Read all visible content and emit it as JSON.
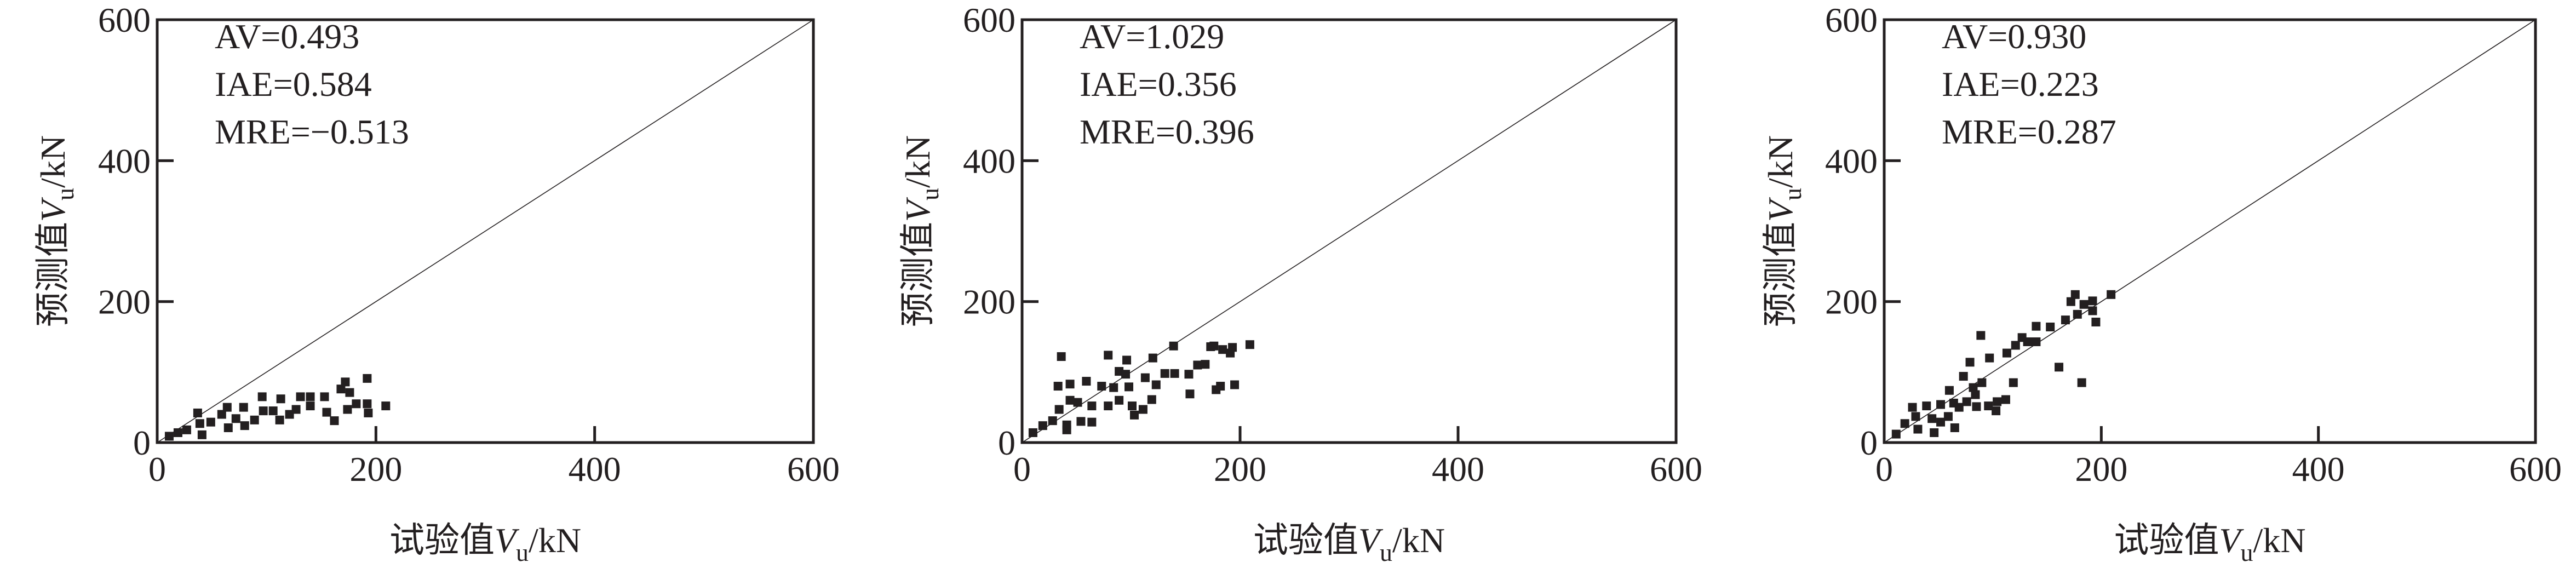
{
  "chart_data": [
    {
      "type": "scatter",
      "xlabel": {
        "prefix": "试验值",
        "var": "V",
        "sub": "u",
        "suffix": "/kN"
      },
      "ylabel": {
        "prefix": "预测值",
        "var": "V",
        "sub": "u",
        "suffix": "/kN"
      },
      "xlim": [
        0,
        600
      ],
      "ylim": [
        0,
        600
      ],
      "xticks": [
        "0",
        "200",
        "400",
        "600"
      ],
      "yticks": [
        "0",
        "200",
        "400",
        "600"
      ],
      "annotations": [
        "AV=0.493",
        "IAE=0.584",
        "MRE=−0.513"
      ],
      "reference_line": "y=x",
      "points": [
        [
          11,
          9
        ],
        [
          19,
          14
        ],
        [
          27,
          18
        ],
        [
          37,
          42
        ],
        [
          39,
          27
        ],
        [
          41,
          11
        ],
        [
          49,
          29
        ],
        [
          59,
          40
        ],
        [
          64,
          50
        ],
        [
          65,
          21
        ],
        [
          72,
          34
        ],
        [
          79,
          50
        ],
        [
          80,
          24
        ],
        [
          89,
          32
        ],
        [
          96,
          65
        ],
        [
          97,
          45
        ],
        [
          106,
          45
        ],
        [
          112,
          32
        ],
        [
          113,
          62
        ],
        [
          121,
          40
        ],
        [
          127,
          47
        ],
        [
          131,
          65
        ],
        [
          140,
          65
        ],
        [
          140,
          52
        ],
        [
          153,
          65
        ],
        [
          155,
          43
        ],
        [
          162,
          31
        ],
        [
          168,
          76
        ],
        [
          172,
          86
        ],
        [
          176,
          71
        ],
        [
          174,
          47
        ],
        [
          182,
          55
        ],
        [
          192,
          91
        ],
        [
          192,
          55
        ],
        [
          193,
          42
        ],
        [
          209,
          52
        ]
      ]
    },
    {
      "type": "scatter",
      "xlabel": {
        "prefix": "试验值",
        "var": "V",
        "sub": "u",
        "suffix": "/kN"
      },
      "ylabel": {
        "prefix": "预测值",
        "var": "V",
        "sub": "u",
        "suffix": "/kN"
      },
      "xlim": [
        0,
        600
      ],
      "ylim": [
        0,
        600
      ],
      "xticks": [
        "0",
        "200",
        "400",
        "600"
      ],
      "yticks": [
        "0",
        "200",
        "400",
        "600"
      ],
      "annotations": [
        "AV=1.029",
        "IAE=0.356",
        "MRE=0.396"
      ],
      "reference_line": "y=x",
      "points": [
        [
          10,
          14
        ],
        [
          19,
          24
        ],
        [
          28,
          31
        ],
        [
          41,
          25
        ],
        [
          41,
          18
        ],
        [
          54,
          30
        ],
        [
          64,
          29
        ],
        [
          36,
          122
        ],
        [
          33,
          80
        ],
        [
          44,
          83
        ],
        [
          59,
          87
        ],
        [
          73,
          80
        ],
        [
          84,
          78
        ],
        [
          98,
          79
        ],
        [
          44,
          60
        ],
        [
          51,
          57
        ],
        [
          34,
          47
        ],
        [
          64,
          52
        ],
        [
          79,
          52
        ],
        [
          89,
          60
        ],
        [
          101,
          52
        ],
        [
          103,
          39
        ],
        [
          111,
          47
        ],
        [
          79,
          124
        ],
        [
          96,
          117
        ],
        [
          89,
          101
        ],
        [
          95,
          97
        ],
        [
          113,
          92
        ],
        [
          119,
          61
        ],
        [
          120,
          120
        ],
        [
          123,
          82
        ],
        [
          131,
          98
        ],
        [
          139,
          137
        ],
        [
          140,
          98
        ],
        [
          153,
          97
        ],
        [
          154,
          69
        ],
        [
          161,
          110
        ],
        [
          168,
          111
        ],
        [
          173,
          136
        ],
        [
          176,
          137
        ],
        [
          178,
          75
        ],
        [
          182,
          80
        ],
        [
          184,
          132
        ],
        [
          191,
          127
        ],
        [
          193,
          135
        ],
        [
          195,
          82
        ],
        [
          209,
          139
        ]
      ]
    },
    {
      "type": "scatter",
      "xlabel": {
        "prefix": "试验值",
        "var": "V",
        "sub": "u",
        "suffix": "/kN"
      },
      "ylabel": {
        "prefix": "预测值",
        "var": "V",
        "sub": "u",
        "suffix": "/kN"
      },
      "xlim": [
        0,
        600
      ],
      "ylim": [
        0,
        600
      ],
      "xticks": [
        "0",
        "200",
        "400",
        "600"
      ],
      "yticks": [
        "0",
        "200",
        "400",
        "600"
      ],
      "annotations": [
        "AV=0.930",
        "IAE=0.223",
        "MRE=0.287"
      ],
      "reference_line": "y=x",
      "points": [
        [
          11,
          12
        ],
        [
          19,
          27
        ],
        [
          26,
          50
        ],
        [
          31,
          19
        ],
        [
          29,
          37
        ],
        [
          39,
          52
        ],
        [
          44,
          34
        ],
        [
          46,
          14
        ],
        [
          52,
          29
        ],
        [
          52,
          54
        ],
        [
          59,
          37
        ],
        [
          60,
          74
        ],
        [
          65,
          21
        ],
        [
          64,
          56
        ],
        [
          69,
          50
        ],
        [
          73,
          94
        ],
        [
          76,
          58
        ],
        [
          79,
          114
        ],
        [
          82,
          78
        ],
        [
          84,
          68
        ],
        [
          85,
          51
        ],
        [
          89,
          152
        ],
        [
          90,
          85
        ],
        [
          96,
          52
        ],
        [
          97,
          120
        ],
        [
          103,
          45
        ],
        [
          104,
          58
        ],
        [
          112,
          61
        ],
        [
          113,
          127
        ],
        [
          119,
          85
        ],
        [
          121,
          138
        ],
        [
          127,
          149
        ],
        [
          132,
          143
        ],
        [
          140,
          143
        ],
        [
          140,
          165
        ],
        [
          153,
          164
        ],
        [
          161,
          107
        ],
        [
          167,
          174
        ],
        [
          172,
          200
        ],
        [
          176,
          210
        ],
        [
          178,
          182
        ],
        [
          182,
          85
        ],
        [
          184,
          196
        ],
        [
          192,
          201
        ],
        [
          192,
          187
        ],
        [
          195,
          171
        ],
        [
          209,
          210
        ]
      ]
    }
  ]
}
